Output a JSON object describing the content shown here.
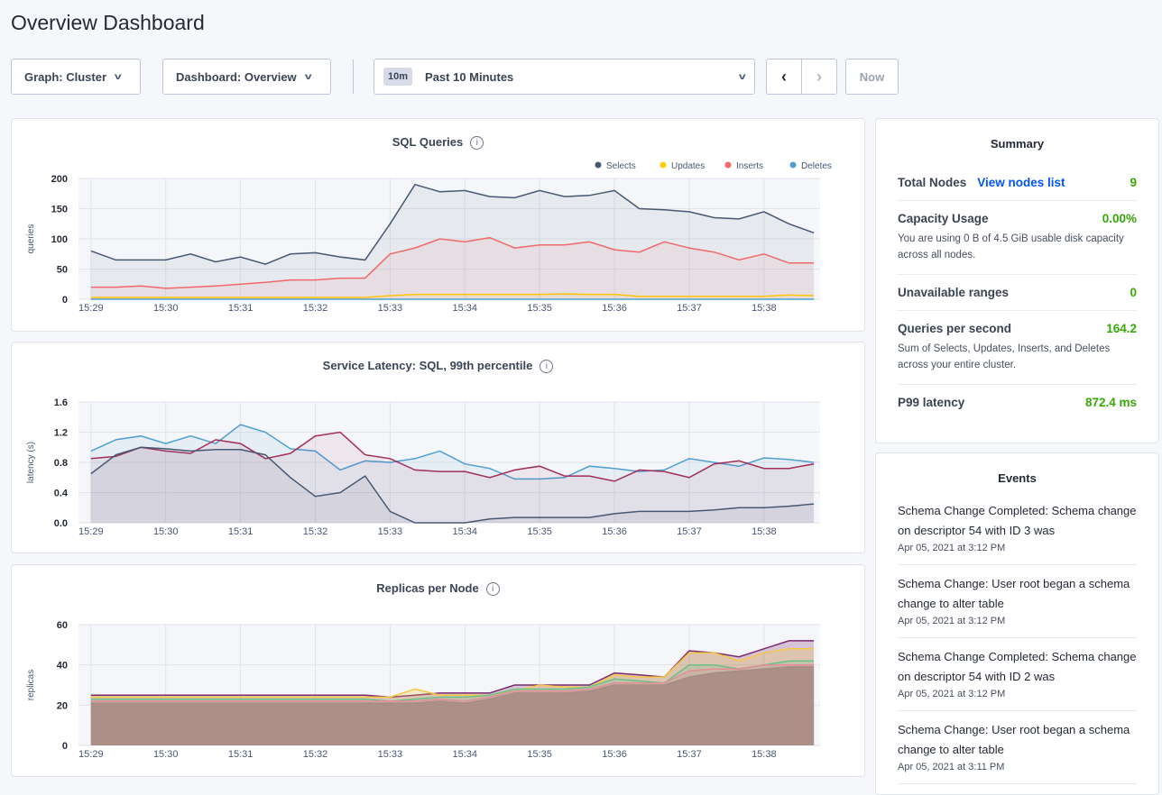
{
  "page": {
    "title": "Overview Dashboard"
  },
  "toolbar": {
    "graph": "Graph: Cluster",
    "dashboard": "Dashboard: Overview",
    "time_badge": "10m",
    "time_range": "Past 10 Minutes",
    "now": "Now"
  },
  "colors": {
    "accent_green": "#37a806",
    "link_blue": "#0055ff"
  },
  "icons": {
    "dropdown": "chevron-down-icon",
    "prev": "chevron-left-icon",
    "next": "chevron-right-icon",
    "info": "info-icon"
  },
  "summary": {
    "title": "Summary",
    "view_nodes": "View nodes list",
    "items": [
      {
        "label": "Total Nodes",
        "value": "9"
      },
      {
        "label": "Capacity Usage",
        "value": "0.00%",
        "desc": "You are using 0 B of 4.5 GiB usable disk capacity across all nodes."
      },
      {
        "label": "Unavailable ranges",
        "value": "0"
      },
      {
        "label": "Queries per second",
        "value": "164.2",
        "desc": "Sum of Selects, Updates, Inserts, and Deletes across your entire cluster."
      },
      {
        "label": "P99 latency",
        "value": "872.4 ms"
      }
    ]
  },
  "events": {
    "title": "Events",
    "items": [
      {
        "text": "Schema Change Completed: Schema change on descriptor 54 with ID 3 was",
        "date": "Apr 05, 2021 at 3:12 PM"
      },
      {
        "text": "Schema Change: User root began a schema change to alter table",
        "date": "Apr 05, 2021 at 3:12 PM"
      },
      {
        "text": "Schema Change Completed: Schema change on descriptor 54 with ID 2 was",
        "date": "Apr 05, 2021 at 3:12 PM"
      },
      {
        "text": "Schema Change: User root began a schema change to alter table",
        "date": "Apr 05, 2021 at 3:11 PM"
      }
    ]
  },
  "chart_data": [
    {
      "type": "area",
      "title": "SQL Queries",
      "ylabel": "queries",
      "ylim": [
        0,
        200
      ],
      "yticks": [
        "0",
        "50",
        "100",
        "150",
        "200"
      ],
      "xticks": [
        "15:29",
        "15:30",
        "15:31",
        "15:32",
        "15:33",
        "15:34",
        "15:35",
        "15:36",
        "15:37",
        "15:38"
      ],
      "grid": true,
      "legend": "top-right",
      "x": [
        "15:29:00",
        "15:29:20",
        "15:29:40",
        "15:30:00",
        "15:30:20",
        "15:30:40",
        "15:31:00",
        "15:31:20",
        "15:31:40",
        "15:32:00",
        "15:32:20",
        "15:32:40",
        "15:33:00",
        "15:33:20",
        "15:33:40",
        "15:34:00",
        "15:34:20",
        "15:34:40",
        "15:35:00",
        "15:35:20",
        "15:35:40",
        "15:36:00",
        "15:36:20",
        "15:36:40",
        "15:37:00",
        "15:37:20",
        "15:37:40",
        "15:38:00",
        "15:38:20",
        "15:38:40"
      ],
      "series": [
        {
          "name": "Selects",
          "color": "#475872",
          "values": [
            80,
            65,
            65,
            65,
            75,
            62,
            70,
            58,
            75,
            77,
            70,
            65,
            125,
            190,
            178,
            180,
            170,
            168,
            180,
            170,
            172,
            180,
            150,
            148,
            145,
            135,
            133,
            145,
            125,
            110
          ]
        },
        {
          "name": "Updates",
          "color": "#ffcd02",
          "values": [
            3,
            3,
            3,
            3,
            3,
            3,
            3,
            3,
            3,
            3,
            3,
            3,
            6,
            8,
            8,
            8,
            8,
            8,
            8,
            9,
            8,
            8,
            5,
            5,
            5,
            5,
            5,
            5,
            7,
            6
          ]
        },
        {
          "name": "Inserts",
          "color": "#f16969",
          "values": [
            20,
            20,
            22,
            18,
            20,
            22,
            25,
            28,
            32,
            32,
            35,
            35,
            75,
            85,
            100,
            95,
            102,
            85,
            90,
            90,
            95,
            82,
            78,
            95,
            85,
            78,
            65,
            75,
            60,
            60
          ]
        },
        {
          "name": "Deletes",
          "color": "#4e9fd1",
          "values": [
            0,
            0,
            0,
            0,
            0,
            0,
            0,
            0,
            0,
            0,
            0,
            0,
            0,
            0,
            0,
            0,
            0,
            0,
            0,
            0,
            0,
            0,
            0,
            0,
            0,
            0,
            0,
            0,
            0,
            0
          ]
        }
      ]
    },
    {
      "type": "area",
      "title": "Service Latency: SQL, 99th percentile",
      "ylabel": "latency (s)",
      "ylim": [
        0,
        1.6
      ],
      "yticks": [
        "0.0",
        "0.4",
        "0.8",
        "1.2",
        "1.6"
      ],
      "xticks": [
        "15:29",
        "15:30",
        "15:31",
        "15:32",
        "15:33",
        "15:34",
        "15:35",
        "15:36",
        "15:37",
        "15:38"
      ],
      "grid": true,
      "x": [
        "15:29:00",
        "15:29:20",
        "15:29:40",
        "15:30:00",
        "15:30:20",
        "15:30:40",
        "15:31:00",
        "15:31:20",
        "15:31:40",
        "15:32:00",
        "15:32:20",
        "15:32:40",
        "15:33:00",
        "15:33:20",
        "15:33:40",
        "15:34:00",
        "15:34:20",
        "15:34:40",
        "15:35:00",
        "15:35:20",
        "15:35:40",
        "15:36:00",
        "15:36:20",
        "15:36:40",
        "15:37:00",
        "15:37:20",
        "15:37:40",
        "15:38:00",
        "15:38:20",
        "15:38:40"
      ],
      "series": [
        {
          "color": "#4e9fd1",
          "values": [
            0.95,
            1.1,
            1.15,
            1.05,
            1.15,
            1.05,
            1.3,
            1.2,
            0.98,
            0.95,
            0.7,
            0.82,
            0.8,
            0.85,
            0.95,
            0.78,
            0.72,
            0.58,
            0.58,
            0.6,
            0.75,
            0.72,
            0.68,
            0.7,
            0.85,
            0.8,
            0.75,
            0.86,
            0.84,
            0.8
          ]
        },
        {
          "color": "#a32e57",
          "values": [
            0.85,
            0.88,
            1.0,
            0.95,
            0.92,
            1.1,
            1.05,
            0.85,
            0.92,
            1.15,
            1.2,
            0.9,
            0.85,
            0.7,
            0.68,
            0.68,
            0.6,
            0.7,
            0.75,
            0.62,
            0.62,
            0.55,
            0.7,
            0.68,
            0.6,
            0.78,
            0.82,
            0.72,
            0.72,
            0.78
          ]
        },
        {
          "color": "#475872",
          "values": [
            0.65,
            0.9,
            1.0,
            0.98,
            0.95,
            0.97,
            0.97,
            0.9,
            0.6,
            0.35,
            0.4,
            0.62,
            0.15,
            0.0,
            0.0,
            0.0,
            0.05,
            0.07,
            0.07,
            0.07,
            0.07,
            0.12,
            0.15,
            0.15,
            0.15,
            0.17,
            0.2,
            0.2,
            0.22,
            0.25
          ]
        }
      ]
    },
    {
      "type": "area",
      "title": "Replicas per Node",
      "ylabel": "replicas",
      "ylim": [
        0,
        60
      ],
      "yticks": [
        "0",
        "20",
        "40",
        "60"
      ],
      "xticks": [
        "15:29",
        "15:30",
        "15:31",
        "15:32",
        "15:33",
        "15:34",
        "15:35",
        "15:36",
        "15:37",
        "15:38"
      ],
      "grid": true,
      "x": [
        "15:29:00",
        "15:29:20",
        "15:29:40",
        "15:30:00",
        "15:30:20",
        "15:30:40",
        "15:31:00",
        "15:31:20",
        "15:31:40",
        "15:32:00",
        "15:32:20",
        "15:32:40",
        "15:33:00",
        "15:33:20",
        "15:33:40",
        "15:34:00",
        "15:34:20",
        "15:34:40",
        "15:35:00",
        "15:35:20",
        "15:35:40",
        "15:36:00",
        "15:36:20",
        "15:36:40",
        "15:37:00",
        "15:37:20",
        "15:37:40",
        "15:38:00",
        "15:38:20",
        "15:38:40"
      ],
      "series": [
        {
          "color": "#7b2a6e",
          "values": [
            25,
            25,
            25,
            25,
            25,
            25,
            25,
            25,
            25,
            25,
            25,
            25,
            24,
            25,
            26,
            26,
            26,
            30,
            30,
            30,
            30,
            36,
            35,
            34,
            47,
            46,
            44,
            48,
            52,
            52
          ]
        },
        {
          "color": "#f5c842",
          "values": [
            24,
            24,
            24,
            24,
            24,
            24,
            24,
            24,
            24,
            24,
            24,
            24,
            24,
            28,
            25,
            25,
            25,
            27,
            30,
            29,
            29,
            35,
            34,
            34,
            46,
            46,
            42,
            46,
            48,
            48
          ]
        },
        {
          "color": "#6dbf8a",
          "values": [
            23,
            23,
            23,
            23,
            23,
            23,
            23,
            23,
            23,
            23,
            23,
            23,
            22,
            23,
            24,
            24,
            25,
            28,
            28,
            28,
            29,
            33,
            32,
            31,
            40,
            40,
            38,
            40,
            42,
            42
          ]
        },
        {
          "color": "#e28b9a",
          "values": [
            22,
            22,
            22,
            22,
            22,
            22,
            22,
            22,
            22,
            22,
            22,
            22,
            22,
            22,
            23,
            22,
            24,
            27,
            27,
            27,
            28,
            31,
            31,
            31,
            37,
            38,
            38,
            40,
            40,
            40
          ]
        },
        {
          "color": "#a88b84",
          "values": [
            21,
            21,
            21,
            21,
            21,
            21,
            21,
            21,
            21,
            21,
            21,
            21,
            21,
            21,
            22,
            21,
            23,
            26,
            26,
            26,
            27,
            30,
            30,
            30,
            34,
            36,
            37,
            38,
            39,
            39
          ]
        }
      ]
    }
  ]
}
